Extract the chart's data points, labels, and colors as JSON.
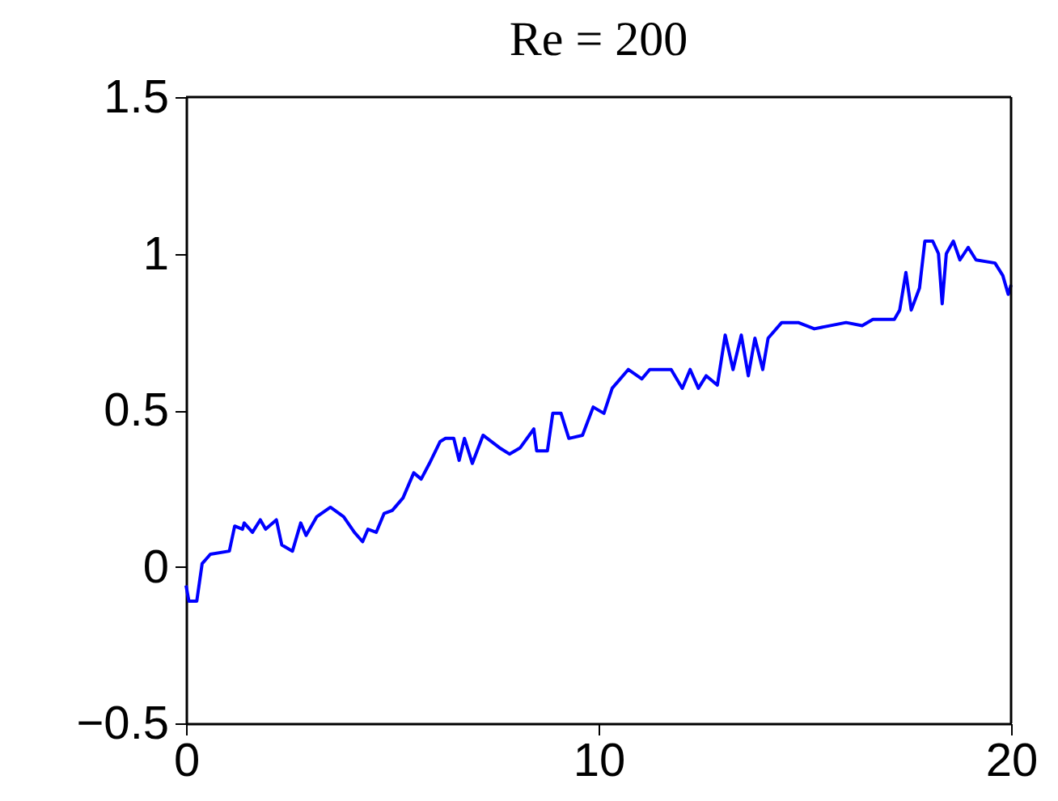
{
  "chart_data": {
    "type": "line",
    "title": "Re = 200",
    "x": [
      0,
      0.07,
      0.26,
      0.39,
      0.59,
      1.05,
      1.18,
      1.37,
      1.41,
      1.61,
      1.8,
      1.93,
      2.19,
      2.32,
      2.58,
      2.78,
      2.91,
      3.17,
      3.5,
      3.82,
      4.08,
      4.28,
      4.41,
      4.61,
      4.8,
      5.0,
      5.26,
      5.52,
      5.7,
      5.9,
      6.16,
      6.29,
      6.49,
      6.62,
      6.75,
      6.94,
      7.2,
      7.6,
      7.84,
      8.1,
      8.43,
      8.5,
      8.76,
      8.89,
      9.09,
      9.28,
      9.61,
      9.87,
      10.13,
      10.33,
      10.72,
      11.05,
      11.24,
      11.76,
      12.03,
      12.22,
      12.42,
      12.61,
      12.88,
      13.07,
      13.26,
      13.46,
      13.63,
      13.79,
      13.98,
      14.11,
      14.44,
      14.84,
      15.23,
      16.0,
      16.39,
      16.65,
      17.17,
      17.3,
      17.45,
      17.58,
      17.78,
      17.91,
      18.1,
      18.24,
      18.33,
      18.43,
      18.6,
      18.76,
      18.96,
      19.15,
      19.61,
      19.8,
      19.93,
      20.0
    ],
    "series": [
      {
        "color": "#0000ff",
        "values": [
          -0.06,
          -0.11,
          -0.11,
          0.01,
          0.04,
          0.05,
          0.13,
          0.12,
          0.14,
          0.11,
          0.15,
          0.12,
          0.15,
          0.07,
          0.05,
          0.14,
          0.1,
          0.16,
          0.19,
          0.16,
          0.11,
          0.08,
          0.12,
          0.11,
          0.17,
          0.18,
          0.22,
          0.3,
          0.28,
          0.33,
          0.4,
          0.41,
          0.41,
          0.34,
          0.41,
          0.33,
          0.42,
          0.38,
          0.36,
          0.38,
          0.44,
          0.37,
          0.37,
          0.49,
          0.49,
          0.41,
          0.42,
          0.51,
          0.49,
          0.57,
          0.63,
          0.6,
          0.63,
          0.63,
          0.57,
          0.63,
          0.57,
          0.61,
          0.58,
          0.74,
          0.63,
          0.74,
          0.61,
          0.73,
          0.63,
          0.73,
          0.78,
          0.78,
          0.76,
          0.78,
          0.77,
          0.79,
          0.79,
          0.82,
          0.94,
          0.82,
          0.89,
          1.04,
          1.04,
          1.0,
          0.84,
          1.0,
          1.04,
          0.98,
          1.02,
          0.98,
          0.97,
          0.93,
          0.87,
          0.9
        ]
      }
    ],
    "xlim": [
      0,
      20
    ],
    "xticks": [
      0,
      10,
      20
    ],
    "ylim": [
      -0.5,
      1.5
    ],
    "yticks": [
      {
        "value": -0.5,
        "label": "−0.5"
      },
      0,
      0.5,
      1,
      1.5
    ],
    "grid": false,
    "marker": "none",
    "line_style": "solid"
  }
}
